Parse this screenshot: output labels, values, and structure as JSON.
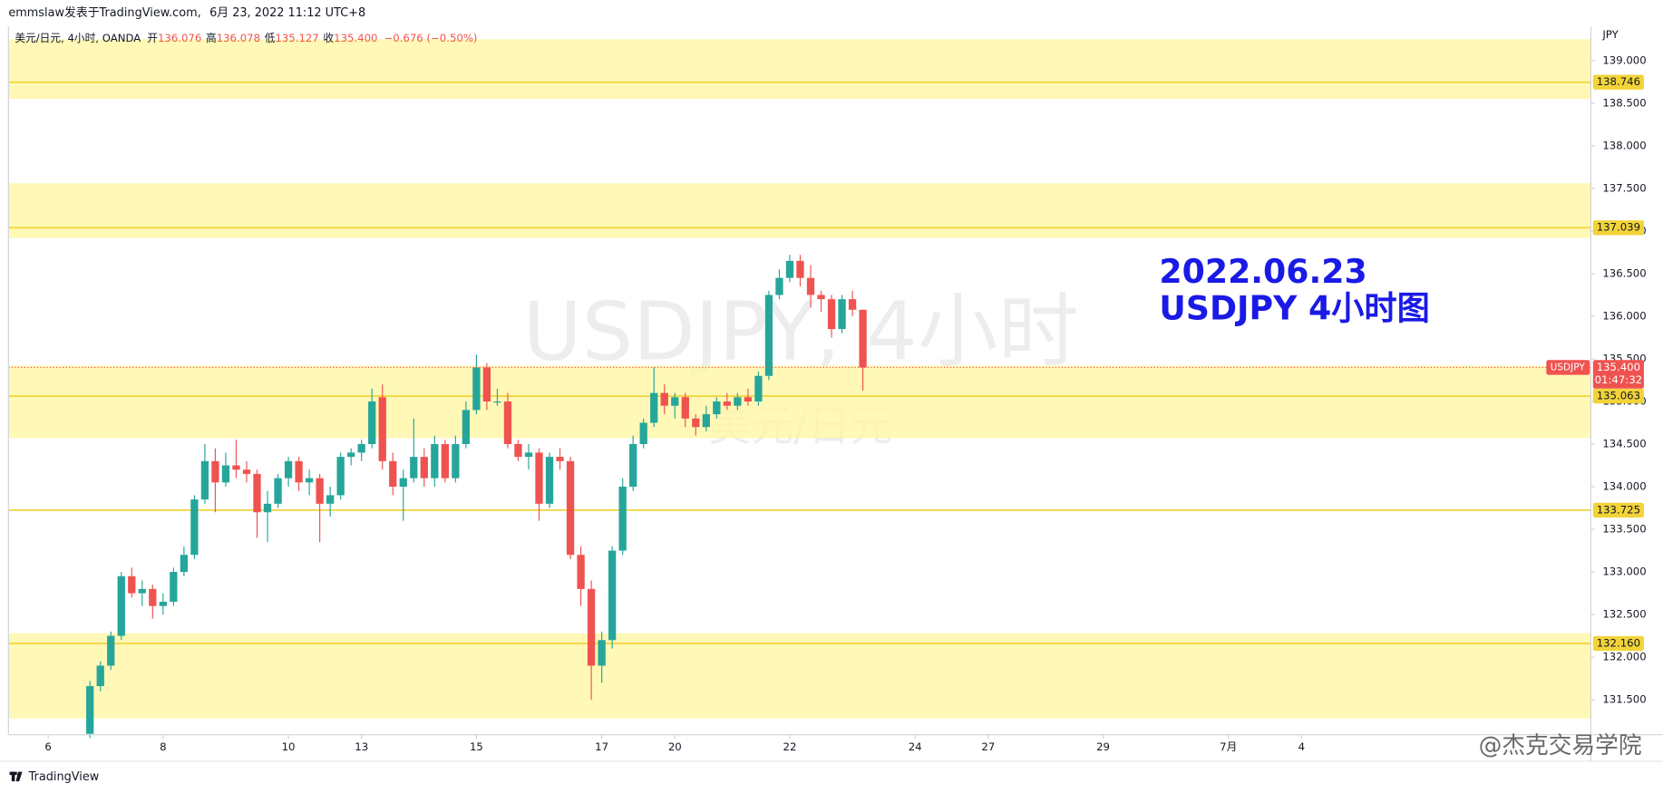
{
  "header": {
    "publisher": "emmslaw发表于TradingView.com,",
    "timestamp": "6月 23, 2022 11:12 UTC+8"
  },
  "legend": {
    "symbol": "美元/日元, 4小时, OANDA",
    "items": [
      {
        "label": "开",
        "value": "136.076"
      },
      {
        "label": "高",
        "value": "136.078"
      },
      {
        "label": "低",
        "value": "135.127"
      },
      {
        "label": "收",
        "value": "135.400"
      }
    ],
    "change": "−0.676 (−0.50%)"
  },
  "footer": {
    "brand": "TradingView",
    "credit": "@杰克交易学院"
  },
  "chart_data": {
    "type": "candlestick",
    "watermark": [
      "USDJPY, 4小时",
      "美元/日元"
    ],
    "annotation": [
      "2022.06.23",
      "USDJPY 4小时图"
    ],
    "y_unit": "JPY",
    "up_color": "#26a69a",
    "down_color": "#ef5350",
    "zone_color": "#fff59d",
    "level_color": "#f2d43a",
    "grid": false,
    "ylim": [
      131.09,
      139.4
    ],
    "yticks": [
      {
        "value": 131.5,
        "label": "131.500"
      },
      {
        "value": 132,
        "label": "132.000"
      },
      {
        "value": 132.5,
        "label": "132.500"
      },
      {
        "value": 133,
        "label": "133.000"
      },
      {
        "value": 133.5,
        "label": "133.500"
      },
      {
        "value": 134,
        "label": "134.000"
      },
      {
        "value": 134.5,
        "label": "134.500"
      },
      {
        "value": 135,
        "label": "135.000"
      },
      {
        "value": 135.5,
        "label": "135.500"
      },
      {
        "value": 136,
        "label": "136.000"
      },
      {
        "value": 136.5,
        "label": "136.500"
      },
      {
        "value": 137,
        "label": "137.000"
      },
      {
        "value": 137.5,
        "label": "137.500"
      },
      {
        "value": 138,
        "label": "138.000"
      },
      {
        "value": 138.5,
        "label": "138.500"
      },
      {
        "value": 139,
        "label": "139.000"
      }
    ],
    "xlim": [
      -7.8,
      143.7
    ],
    "xticks": [
      {
        "value": -4,
        "label": "6"
      },
      {
        "value": 7,
        "label": "8"
      },
      {
        "value": 19,
        "label": "10"
      },
      {
        "value": 26,
        "label": "13"
      },
      {
        "value": 37,
        "label": "15"
      },
      {
        "value": 49,
        "label": "17"
      },
      {
        "value": 56,
        "label": "20"
      },
      {
        "value": 67,
        "label": "22"
      },
      {
        "value": 79,
        "label": "24"
      },
      {
        "value": 86,
        "label": "27"
      },
      {
        "value": 97,
        "label": "29"
      },
      {
        "value": 109,
        "label": "7月"
      },
      {
        "value": 116,
        "label": "4"
      }
    ],
    "zones": [
      [
        138.55,
        139.25
      ],
      [
        136.92,
        137.56
      ],
      [
        134.57,
        135.42
      ],
      [
        131.28,
        132.28
      ]
    ],
    "levels": [
      {
        "value": 138.746,
        "label": "138.746"
      },
      {
        "value": 137.039,
        "label": "137.039"
      },
      {
        "value": 135.063,
        "label": "135.063"
      },
      {
        "value": 133.725,
        "label": "133.725"
      },
      {
        "value": 132.16,
        "label": "132.160"
      }
    ],
    "last_price": {
      "value": 135.4,
      "label": "135.400",
      "symbol": "USDJPY",
      "countdown": "01:47:32"
    },
    "series": [
      {
        "name": "USDJPY",
        "open": [
          131.1,
          131.66,
          131.9,
          132.25,
          132.95,
          132.75,
          132.8,
          132.6,
          132.65,
          133.0,
          133.2,
          133.85,
          134.3,
          134.05,
          134.25,
          134.2,
          134.15,
          133.7,
          133.8,
          134.1,
          134.3,
          134.05,
          134.1,
          133.8,
          133.9,
          134.35,
          134.4,
          134.5,
          135.05,
          134.3,
          134.0,
          134.1,
          134.35,
          134.1,
          134.5,
          134.1,
          134.5,
          134.9,
          135.4,
          135.0,
          135.0,
          134.5,
          134.35,
          134.4,
          133.8,
          134.35,
          134.3,
          133.2,
          132.8,
          131.9,
          132.2,
          133.25,
          134.0,
          134.5,
          134.75,
          135.1,
          134.95,
          135.05,
          134.8,
          134.7,
          134.85,
          135.0,
          134.95,
          135.05,
          135.0,
          135.3,
          136.25,
          136.45,
          136.65,
          136.45,
          136.25,
          136.2,
          135.85,
          136.2,
          136.076
        ],
        "high": [
          131.72,
          131.95,
          132.3,
          133.0,
          133.05,
          132.9,
          132.85,
          132.75,
          133.05,
          133.3,
          133.9,
          134.5,
          134.45,
          134.4,
          134.55,
          134.3,
          134.2,
          133.95,
          134.15,
          134.35,
          134.35,
          134.2,
          134.15,
          134.0,
          134.4,
          134.45,
          134.55,
          135.15,
          135.2,
          134.4,
          134.2,
          134.8,
          134.45,
          134.6,
          134.55,
          134.6,
          135.0,
          135.55,
          135.45,
          135.15,
          135.1,
          134.55,
          134.5,
          134.45,
          134.4,
          134.45,
          134.35,
          133.3,
          132.9,
          132.3,
          133.3,
          134.1,
          134.6,
          134.8,
          135.4,
          135.2,
          135.1,
          135.1,
          134.85,
          134.95,
          135.05,
          135.1,
          135.1,
          135.15,
          135.35,
          136.3,
          136.55,
          136.72,
          136.72,
          136.6,
          136.3,
          136.25,
          136.25,
          136.3,
          136.078
        ],
        "low": [
          131.05,
          131.6,
          131.85,
          132.2,
          132.7,
          132.6,
          132.45,
          132.5,
          132.6,
          132.95,
          133.15,
          133.8,
          133.7,
          134.0,
          134.1,
          134.05,
          133.4,
          133.35,
          133.75,
          134.0,
          133.95,
          133.9,
          133.35,
          133.65,
          133.85,
          134.25,
          134.3,
          134.45,
          134.2,
          133.9,
          133.6,
          134.05,
          134.0,
          134.0,
          134.05,
          134.05,
          134.45,
          134.85,
          134.9,
          134.95,
          134.45,
          134.3,
          134.2,
          133.6,
          133.75,
          134.2,
          133.15,
          132.6,
          131.5,
          131.7,
          132.1,
          133.2,
          133.95,
          134.45,
          134.7,
          134.85,
          134.8,
          134.7,
          134.6,
          134.65,
          134.8,
          134.9,
          134.9,
          134.95,
          134.95,
          135.25,
          136.2,
          136.4,
          136.35,
          136.1,
          136.05,
          135.75,
          135.8,
          136.0,
          135.127
        ],
        "close": [
          131.66,
          131.9,
          132.25,
          132.95,
          132.75,
          132.8,
          132.6,
          132.65,
          133.0,
          133.2,
          133.85,
          134.3,
          134.05,
          134.25,
          134.2,
          134.15,
          133.7,
          133.8,
          134.1,
          134.3,
          134.05,
          134.1,
          133.8,
          133.9,
          134.35,
          134.4,
          134.5,
          135.0,
          134.3,
          134.0,
          134.1,
          134.35,
          134.1,
          134.5,
          134.1,
          134.5,
          134.9,
          135.4,
          135.0,
          135.0,
          134.5,
          134.35,
          134.4,
          133.8,
          134.35,
          134.3,
          133.2,
          132.8,
          131.9,
          132.2,
          133.25,
          134.0,
          134.5,
          134.75,
          135.1,
          134.95,
          135.05,
          134.8,
          134.7,
          134.85,
          135.0,
          134.95,
          135.05,
          135.0,
          135.3,
          136.25,
          136.45,
          136.65,
          136.45,
          136.25,
          136.2,
          135.85,
          136.2,
          136.076,
          135.4
        ]
      }
    ]
  }
}
